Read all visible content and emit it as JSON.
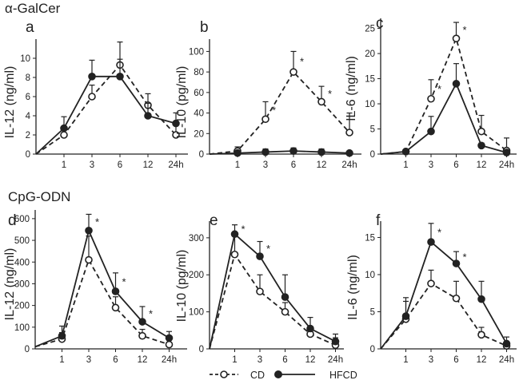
{
  "section_titles": [
    "α-GalCer",
    "CpG-ODN"
  ],
  "legend": {
    "cd": {
      "label": "CD",
      "style": "open-dashed"
    },
    "hfcd": {
      "label": "HFCD",
      "style": "filled-solid"
    }
  },
  "colors": {
    "line": "#222222",
    "background": "#ffffff"
  },
  "chart_data": [
    {
      "type": "line",
      "panel": "a",
      "group": "α-GalCer",
      "ylabel": "IL-12 (ng/ml)",
      "categories": [
        "1",
        "3",
        "6",
        "12",
        "24h"
      ],
      "x": [
        0,
        1,
        3,
        6,
        12,
        24
      ],
      "ylim": [
        0,
        12
      ],
      "yticks": [
        0,
        2,
        4,
        6,
        8,
        10
      ],
      "series": [
        {
          "name": "CD",
          "values": [
            0,
            2.0,
            6.0,
            9.3,
            5.1,
            2.0
          ],
          "err": [
            0,
            0.8,
            1.2,
            2.4,
            1.2,
            1.4
          ],
          "stars": [
            false,
            false,
            false,
            false,
            false,
            false
          ]
        },
        {
          "name": "HFCD",
          "values": [
            0,
            2.7,
            8.1,
            8.1,
            4.0,
            3.2
          ],
          "err": [
            0,
            1.2,
            1.7,
            1.8,
            1.3,
            1.1
          ],
          "stars": [
            false,
            false,
            false,
            false,
            false,
            false
          ]
        }
      ]
    },
    {
      "type": "line",
      "panel": "b",
      "group": "α-GalCer",
      "ylabel": "IL-10 (pg/ml)",
      "categories": [
        "1",
        "3",
        "6",
        "12",
        "24h"
      ],
      "x": [
        0,
        1,
        3,
        6,
        12,
        24
      ],
      "ylim": [
        0,
        112
      ],
      "yticks": [
        0,
        20,
        40,
        60,
        80,
        100
      ],
      "series": [
        {
          "name": "CD",
          "values": [
            0,
            3,
            34,
            80,
            51,
            21
          ],
          "err": [
            0,
            4,
            17,
            20,
            15,
            19
          ],
          "stars": [
            false,
            false,
            true,
            true,
            true,
            false
          ]
        },
        {
          "name": "HFCD",
          "values": [
            0,
            1,
            2,
            3,
            2,
            1
          ],
          "err": [
            0,
            2,
            3,
            3,
            3,
            2
          ],
          "stars": [
            false,
            false,
            false,
            false,
            false,
            false
          ]
        }
      ]
    },
    {
      "type": "line",
      "panel": "c",
      "group": "α-GalCer",
      "ylabel": "IL-6 (ng/ml)",
      "categories": [
        "1",
        "3",
        "6",
        "12",
        "24h"
      ],
      "x": [
        0,
        1,
        3,
        6,
        12,
        24
      ],
      "ylim": [
        0,
        27
      ],
      "yticks": [
        0,
        5,
        10,
        15,
        20,
        25
      ],
      "series": [
        {
          "name": "CD",
          "values": [
            0,
            0.5,
            11,
            23,
            4.5,
            0.7
          ],
          "err": [
            0,
            0.4,
            3.8,
            3.2,
            3.2,
            2.5
          ],
          "stars": [
            false,
            false,
            true,
            true,
            false,
            false
          ]
        },
        {
          "name": "HFCD",
          "values": [
            0,
            0.5,
            4.5,
            14,
            1.7,
            0.3
          ],
          "err": [
            0,
            0.4,
            3.0,
            4.0,
            0.5,
            0.3
          ],
          "stars": [
            false,
            false,
            false,
            false,
            false,
            false
          ]
        }
      ]
    },
    {
      "type": "line",
      "panel": "d",
      "group": "CpG-ODN",
      "ylabel": "IL-12 (ng/ml)",
      "categories": [
        "1",
        "3",
        "6",
        "12",
        "24h"
      ],
      "x": [
        0,
        1,
        3,
        6,
        12,
        24
      ],
      "ylim": [
        0,
        640
      ],
      "yticks": [
        0,
        100,
        200,
        300,
        400,
        500,
        600
      ],
      "series": [
        {
          "name": "CD",
          "values": [
            10,
            45,
            410,
            190,
            60,
            20
          ],
          "err": [
            0,
            30,
            110,
            50,
            30,
            20
          ],
          "stars": [
            false,
            false,
            false,
            false,
            false,
            false
          ]
        },
        {
          "name": "HFCD",
          "values": [
            10,
            60,
            545,
            265,
            125,
            50
          ],
          "err": [
            0,
            45,
            75,
            85,
            70,
            30
          ],
          "stars": [
            false,
            false,
            true,
            true,
            true,
            false
          ]
        }
      ]
    },
    {
      "type": "line",
      "panel": "e",
      "group": "CpG-ODN",
      "ylabel": "IL-10 (pg/ml)",
      "categories": [
        "1",
        "3",
        "6",
        "12",
        "24h"
      ],
      "x": [
        0,
        1,
        3,
        6,
        12,
        24
      ],
      "ylim": [
        0,
        345
      ],
      "yticks": [
        0,
        100,
        200,
        300
      ],
      "series": [
        {
          "name": "CD",
          "values": [
            0,
            255,
            155,
            100,
            40,
            10
          ],
          "err": [
            0,
            50,
            45,
            25,
            20,
            20
          ],
          "stars": [
            false,
            false,
            false,
            false,
            false,
            false
          ]
        },
        {
          "name": "HFCD",
          "values": [
            0,
            310,
            250,
            140,
            55,
            20
          ],
          "err": [
            0,
            25,
            40,
            60,
            30,
            20
          ],
          "stars": [
            false,
            true,
            true,
            false,
            false,
            false
          ]
        }
      ]
    },
    {
      "type": "line",
      "panel": "f",
      "group": "CpG-ODN",
      "ylabel": "IL-6 (ng/ml)",
      "categories": [
        "1",
        "3",
        "6",
        "12",
        "24h"
      ],
      "x": [
        0,
        1,
        3,
        6,
        12,
        24
      ],
      "ylim": [
        0,
        17.2
      ],
      "yticks": [
        0,
        5,
        10,
        15
      ],
      "series": [
        {
          "name": "CD",
          "values": [
            0,
            4.0,
            8.8,
            6.8,
            1.9,
            0.4
          ],
          "err": [
            0,
            2.4,
            1.8,
            2.3,
            1.0,
            0.4
          ],
          "stars": [
            false,
            false,
            false,
            false,
            false,
            false
          ]
        },
        {
          "name": "HFCD",
          "values": [
            0,
            4.4,
            14.4,
            11.5,
            6.7,
            0.7
          ],
          "err": [
            0,
            2.5,
            2.5,
            1.6,
            2.4,
            0.9
          ],
          "stars": [
            false,
            false,
            true,
            true,
            false,
            false
          ]
        }
      ]
    }
  ]
}
